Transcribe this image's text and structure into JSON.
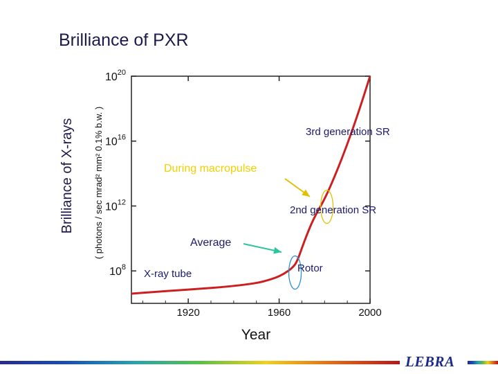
{
  "slide": {
    "title": "Brilliance of PXR",
    "logo_text": "LEBRA",
    "footer_gradient": [
      "#2a2a8a",
      "#1a4fb0",
      "#2aa0b0",
      "#5bbf4a",
      "#f0d020",
      "#e06a1a",
      "#b01a1a"
    ]
  },
  "chart_data": {
    "type": "line",
    "title": "",
    "outer_ylabel": "Brilliance of X-rays",
    "ylabel": "( photons / sec mrad² mm² 0.1% b.w. )",
    "xlabel": "Year",
    "xlim": [
      1895,
      2000
    ],
    "ylim_log10": [
      6,
      20
    ],
    "xticks": [
      1920,
      1960,
      2000
    ],
    "xtick_labels": [
      "1920",
      "1960",
      "2000"
    ],
    "yticks": [
      {
        "base": "10",
        "exp": "20",
        "value_log10": 20
      },
      {
        "base": "10",
        "exp": "16",
        "value_log10": 16
      },
      {
        "base": "10",
        "exp": "12",
        "value_log10": 12
      },
      {
        "base": "10",
        "exp": "8",
        "value_log10": 8
      }
    ],
    "series": [
      {
        "name": "brilliance",
        "color": "#cc1f1f",
        "x": [
          1895,
          1905,
          1915,
          1925,
          1935,
          1945,
          1952,
          1958,
          1962,
          1966,
          1968,
          1971,
          1975,
          1980,
          1985,
          1990,
          1995,
          2000
        ],
        "y_log10": [
          6.6,
          6.7,
          6.8,
          6.9,
          7.0,
          7.15,
          7.3,
          7.55,
          7.8,
          8.2,
          8.6,
          9.8,
          11.2,
          12.4,
          14.0,
          15.8,
          17.8,
          20.0
        ]
      }
    ],
    "annotations": [
      {
        "text": "3rd generation SR",
        "color": "#1a1a6e"
      },
      {
        "text": "During macropulse",
        "color": "#f0d000"
      },
      {
        "text": "2nd generation SR",
        "color": "#1a1a6e"
      },
      {
        "text": "Average",
        "color": "#1a1a6e",
        "arrow_color": "#2ec4a0"
      },
      {
        "text": "Rotor",
        "color": "#1a1a6e"
      },
      {
        "text": "X-ray tube",
        "color": "#1a1a6e"
      }
    ],
    "markers": [
      {
        "name": "average-ellipse",
        "x": 1967,
        "y_log10": 7.9,
        "color": "#2b8fd6"
      },
      {
        "name": "macropulse-ellipse",
        "x": 1981,
        "y_log10": 11.95,
        "color": "#e0c000"
      }
    ]
  }
}
